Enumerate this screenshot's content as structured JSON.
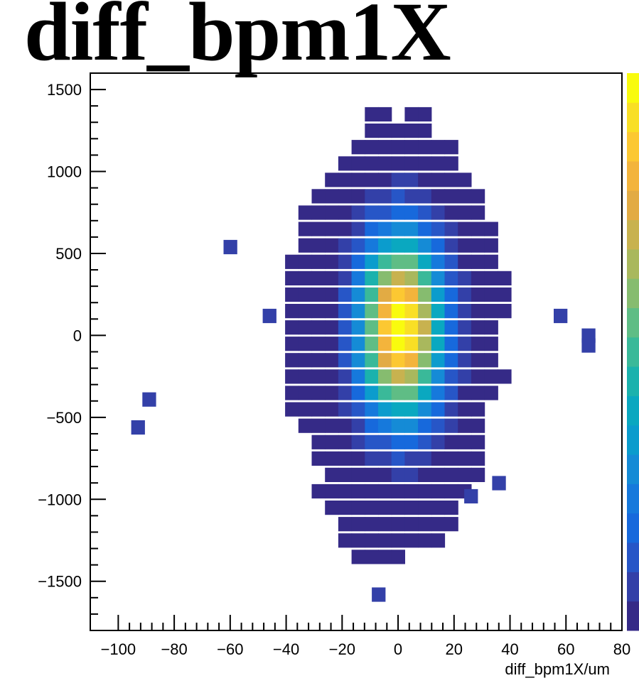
{
  "chart_data": {
    "type": "heatmap",
    "title": "diff_bpm1X",
    "xlabel": "diff_bpm1X/um",
    "ylabel": "",
    "xlim": [
      -110,
      80
    ],
    "ylim": [
      -1800,
      1600
    ],
    "x_ticks": [
      -100,
      -80,
      -60,
      -40,
      -20,
      0,
      20,
      40,
      60,
      80
    ],
    "x_tick_labels": [
      "−100",
      "−80",
      "−60",
      "−40",
      "−20",
      "0",
      "20",
      "40",
      "60",
      "80"
    ],
    "y_ticks": [
      -1500,
      -1000,
      -500,
      0,
      500,
      1000,
      1500
    ],
    "y_tick_labels": [
      "−1500",
      "−1000",
      "−500",
      "0",
      "500",
      "1000",
      "1500"
    ],
    "x_bin_width": 4.75,
    "y_bin_height": 85,
    "peak": {
      "x": 1,
      "y": 50,
      "sigma_x": 10,
      "sigma_y": 380
    },
    "envelope_rows": [
      {
        "y": 1350,
        "x0": -8,
        "x1": -3
      },
      {
        "y": 1350,
        "x0": 5,
        "x1": 10
      },
      {
        "y": 1250,
        "x0": -8,
        "x1": 10
      },
      {
        "y": 1150,
        "x0": -13,
        "x1": 20
      },
      {
        "y": 1050,
        "x0": -18,
        "x1": 23
      },
      {
        "y": 950,
        "x0": -23,
        "x1": 28
      },
      {
        "y": 850,
        "x0": -28,
        "x1": 30
      },
      {
        "y": 750,
        "x0": -33,
        "x1": 33
      },
      {
        "y": 650,
        "x0": -33,
        "x1": 35
      },
      {
        "y": 550,
        "x0": -33,
        "x1": 35
      },
      {
        "y": 450,
        "x0": -36,
        "x1": 37
      },
      {
        "y": 350,
        "x0": -38,
        "x1": 38
      },
      {
        "y": 250,
        "x0": -38,
        "x1": 38
      },
      {
        "y": 150,
        "x0": -38,
        "x1": 38
      },
      {
        "y": 50,
        "x0": -38,
        "x1": 35
      },
      {
        "y": -50,
        "x0": -38,
        "x1": 35
      },
      {
        "y": -150,
        "x0": -38,
        "x1": 35
      },
      {
        "y": -250,
        "x0": -38,
        "x1": 42
      },
      {
        "y": -350,
        "x0": -38,
        "x1": 35
      },
      {
        "y": -450,
        "x0": -38,
        "x1": 33
      },
      {
        "y": -550,
        "x0": -33,
        "x1": 30
      },
      {
        "y": -650,
        "x0": -28,
        "x1": 30
      },
      {
        "y": -750,
        "x0": -28,
        "x1": 30
      },
      {
        "y": -850,
        "x0": -23,
        "x1": 30
      },
      {
        "y": -950,
        "x0": -28,
        "x1": 25
      },
      {
        "y": -1050,
        "x0": -23,
        "x1": 20
      },
      {
        "y": -1150,
        "x0": -18,
        "x1": 20
      },
      {
        "y": -1250,
        "x0": -18,
        "x1": 15
      },
      {
        "y": -1350,
        "x0": -13,
        "x1": 0
      }
    ],
    "outlier_bins": [
      {
        "x": -60,
        "y": 540
      },
      {
        "x": -46,
        "y": 120
      },
      {
        "x": -89,
        "y": -390
      },
      {
        "x": -93,
        "y": -560
      },
      {
        "x": -7,
        "y": -1580
      },
      {
        "x": 58,
        "y": 120
      },
      {
        "x": 68,
        "y": 0
      },
      {
        "x": 68,
        "y": -60
      },
      {
        "x": 36,
        "y": -900
      },
      {
        "x": 26,
        "y": -980
      }
    ],
    "colorbar": [
      "#352a87",
      "#3340a8",
      "#2756c7",
      "#1769dc",
      "#1679dc",
      "#158bd6",
      "#0b9ccd",
      "#0aa8c0",
      "#1bb2ad",
      "#3ab999",
      "#5fbd85",
      "#86bc6f",
      "#a9b85d",
      "#c8b24f",
      "#e2ab44",
      "#f3b43c",
      "#fcc832",
      "#f9df25",
      "#f9fb0e"
    ],
    "grid": false,
    "legend": "colorbar-right"
  }
}
